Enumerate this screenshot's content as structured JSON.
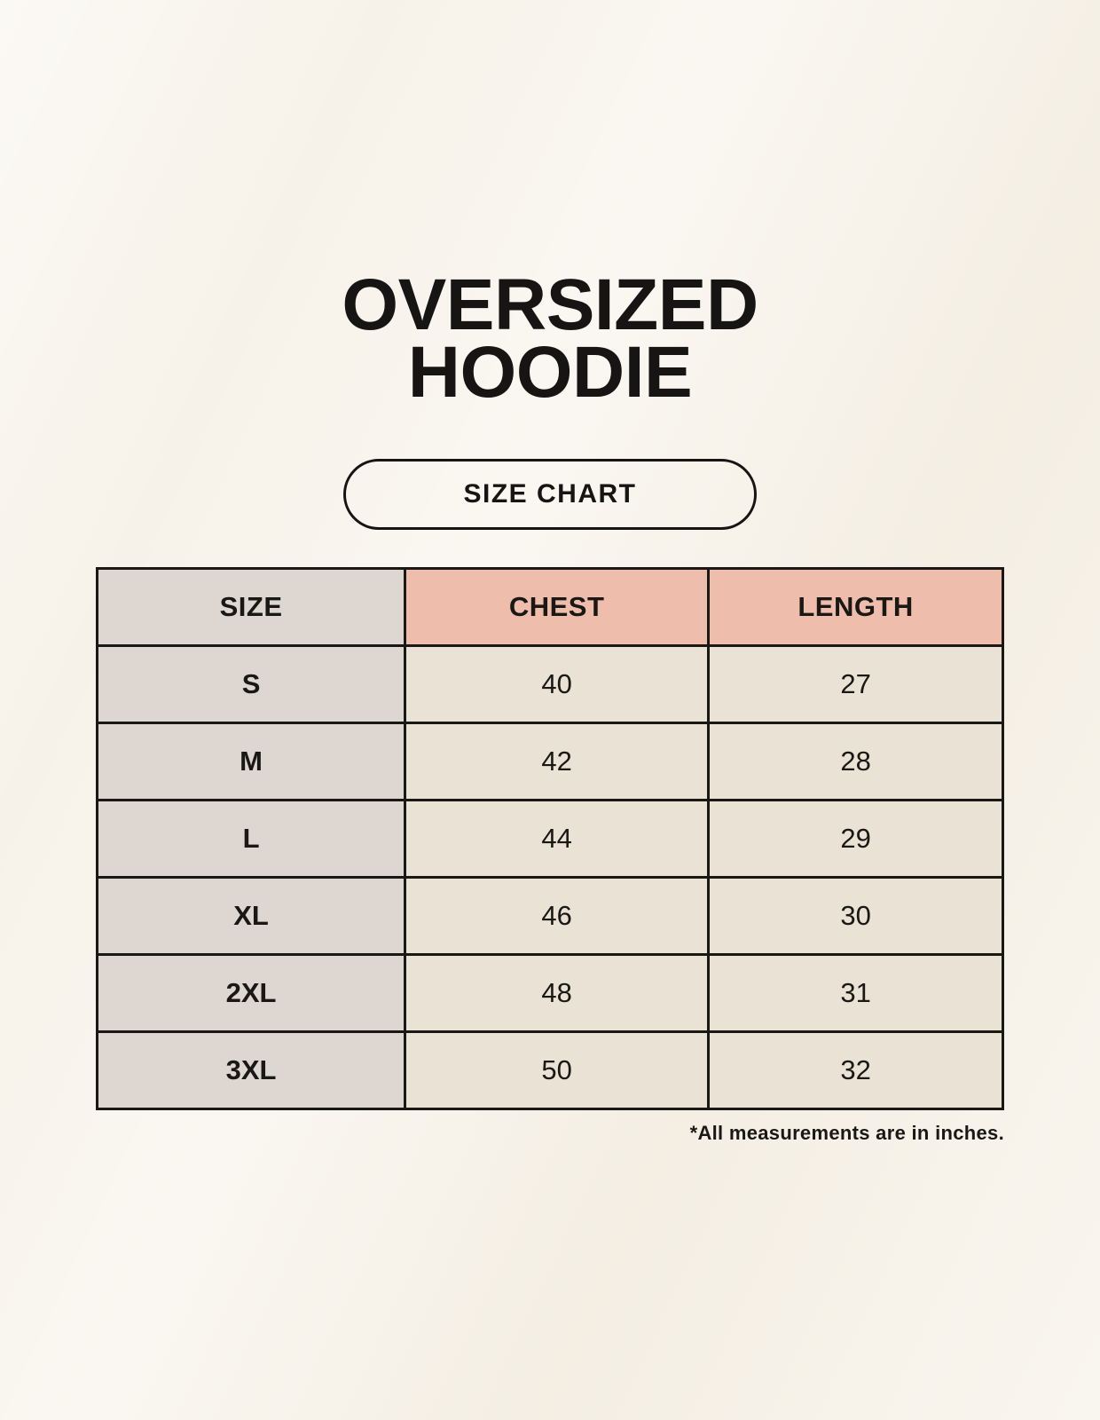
{
  "header": {
    "title_line1": "OVERSIZED",
    "title_line2": "HOODIE",
    "badge_label": "SIZE CHART"
  },
  "chart_data": {
    "type": "table",
    "columns": [
      "SIZE",
      "CHEST",
      "LENGTH"
    ],
    "rows": [
      [
        "S",
        "40",
        "27"
      ],
      [
        "M",
        "42",
        "28"
      ],
      [
        "L",
        "44",
        "29"
      ],
      [
        "XL",
        "46",
        "30"
      ],
      [
        "2XL",
        "48",
        "31"
      ],
      [
        "3XL",
        "50",
        "32"
      ]
    ],
    "units": "inches"
  },
  "footnote": "*All measurements are in inches.",
  "colors": {
    "background": "#f7f2e9",
    "size_column_bg": "#ddd6d1",
    "measure_header_bg": "#eebdac",
    "data_cell_bg": "#e9e2d5",
    "border": "#1a1815",
    "text": "#171513"
  }
}
